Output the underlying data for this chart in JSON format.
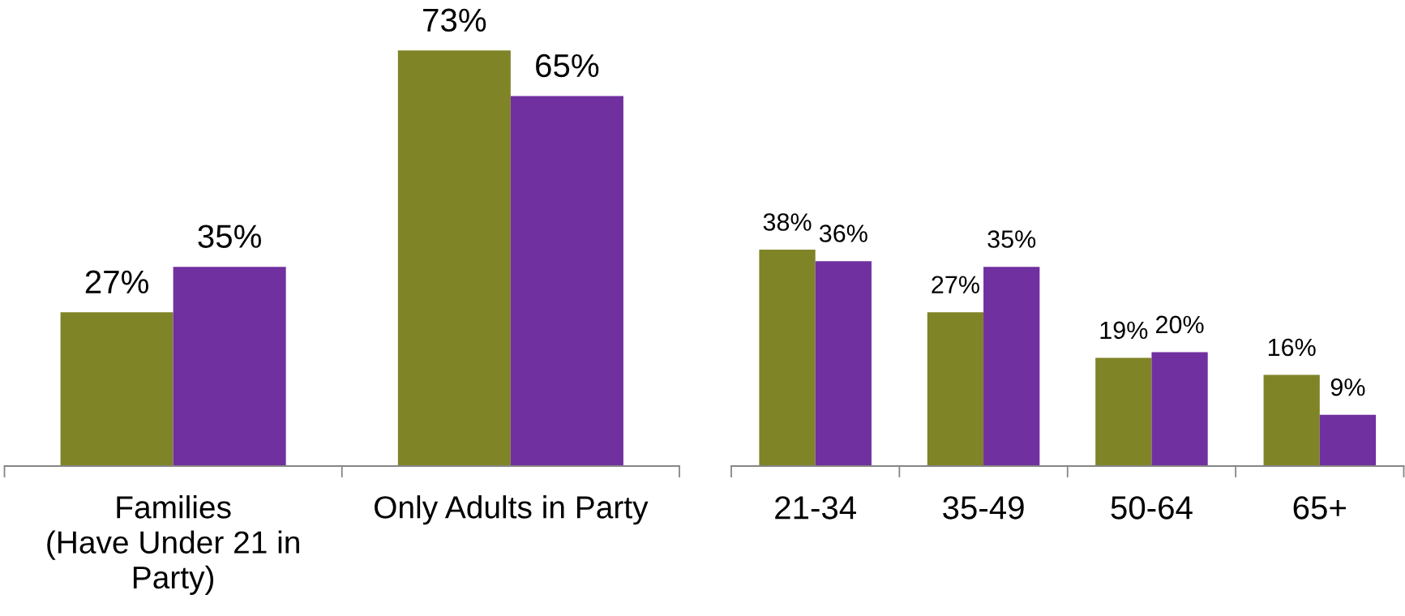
{
  "chart_data": [
    {
      "type": "bar",
      "categories": [
        "Families\n(Have Under 21 in\nParty)",
        "Only Adults in Party"
      ],
      "series": [
        {
          "color": "#7f8427",
          "values": [
            27,
            73
          ],
          "value_labels": [
            "27%",
            "73%"
          ]
        },
        {
          "color": "#7030a0",
          "values": [
            35,
            65
          ],
          "value_labels": [
            "35%",
            "65%"
          ]
        }
      ],
      "tick_labels": "x"
    },
    {
      "type": "bar",
      "categories": [
        "21-34",
        "35-49",
        "50-64",
        "65+"
      ],
      "series": [
        {
          "color": "#7f8427",
          "values": [
            38,
            27,
            19,
            16
          ],
          "value_labels": [
            "38%",
            "27%",
            "19%",
            "16%"
          ]
        },
        {
          "color": "#7030a0",
          "values": [
            36,
            35,
            20,
            9
          ],
          "value_labels": [
            "36%",
            "35%",
            "20%",
            "9%"
          ]
        }
      ],
      "tick_labels": "x"
    }
  ]
}
